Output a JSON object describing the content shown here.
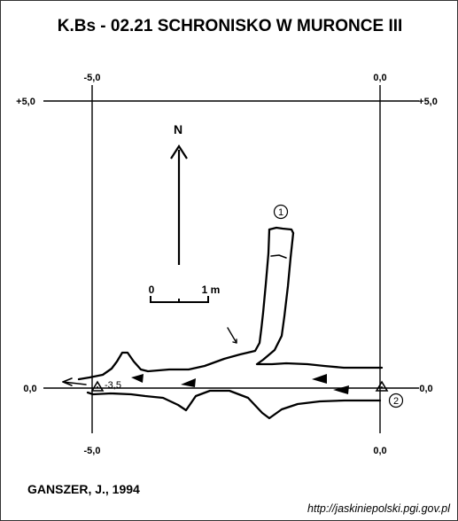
{
  "title": "K.Bs - 02.21  SCHRONISKO W MURONCE III",
  "author": "GANSZER, J., 1994",
  "source_url": "http://jaskiniepolski.pgi.gov.pl",
  "grid": {
    "top_left_label": "-5,0",
    "top_right_label": "0,0",
    "left_upper_label": "+5,0",
    "right_upper_label": "+5,0",
    "left_lower_label": "0,0",
    "right_lower_label": "0,0",
    "bottom_left_label": "-5,0",
    "bottom_right_label": "0,0"
  },
  "north_label": "N",
  "scale_bar": {
    "start_label": "0",
    "end_label": "1 m"
  },
  "markers": {
    "point_1": "1",
    "point_2": "2",
    "survey_station_depth": "-3,5"
  },
  "colors": {
    "ink": "#000000",
    "background": "#ffffff"
  }
}
